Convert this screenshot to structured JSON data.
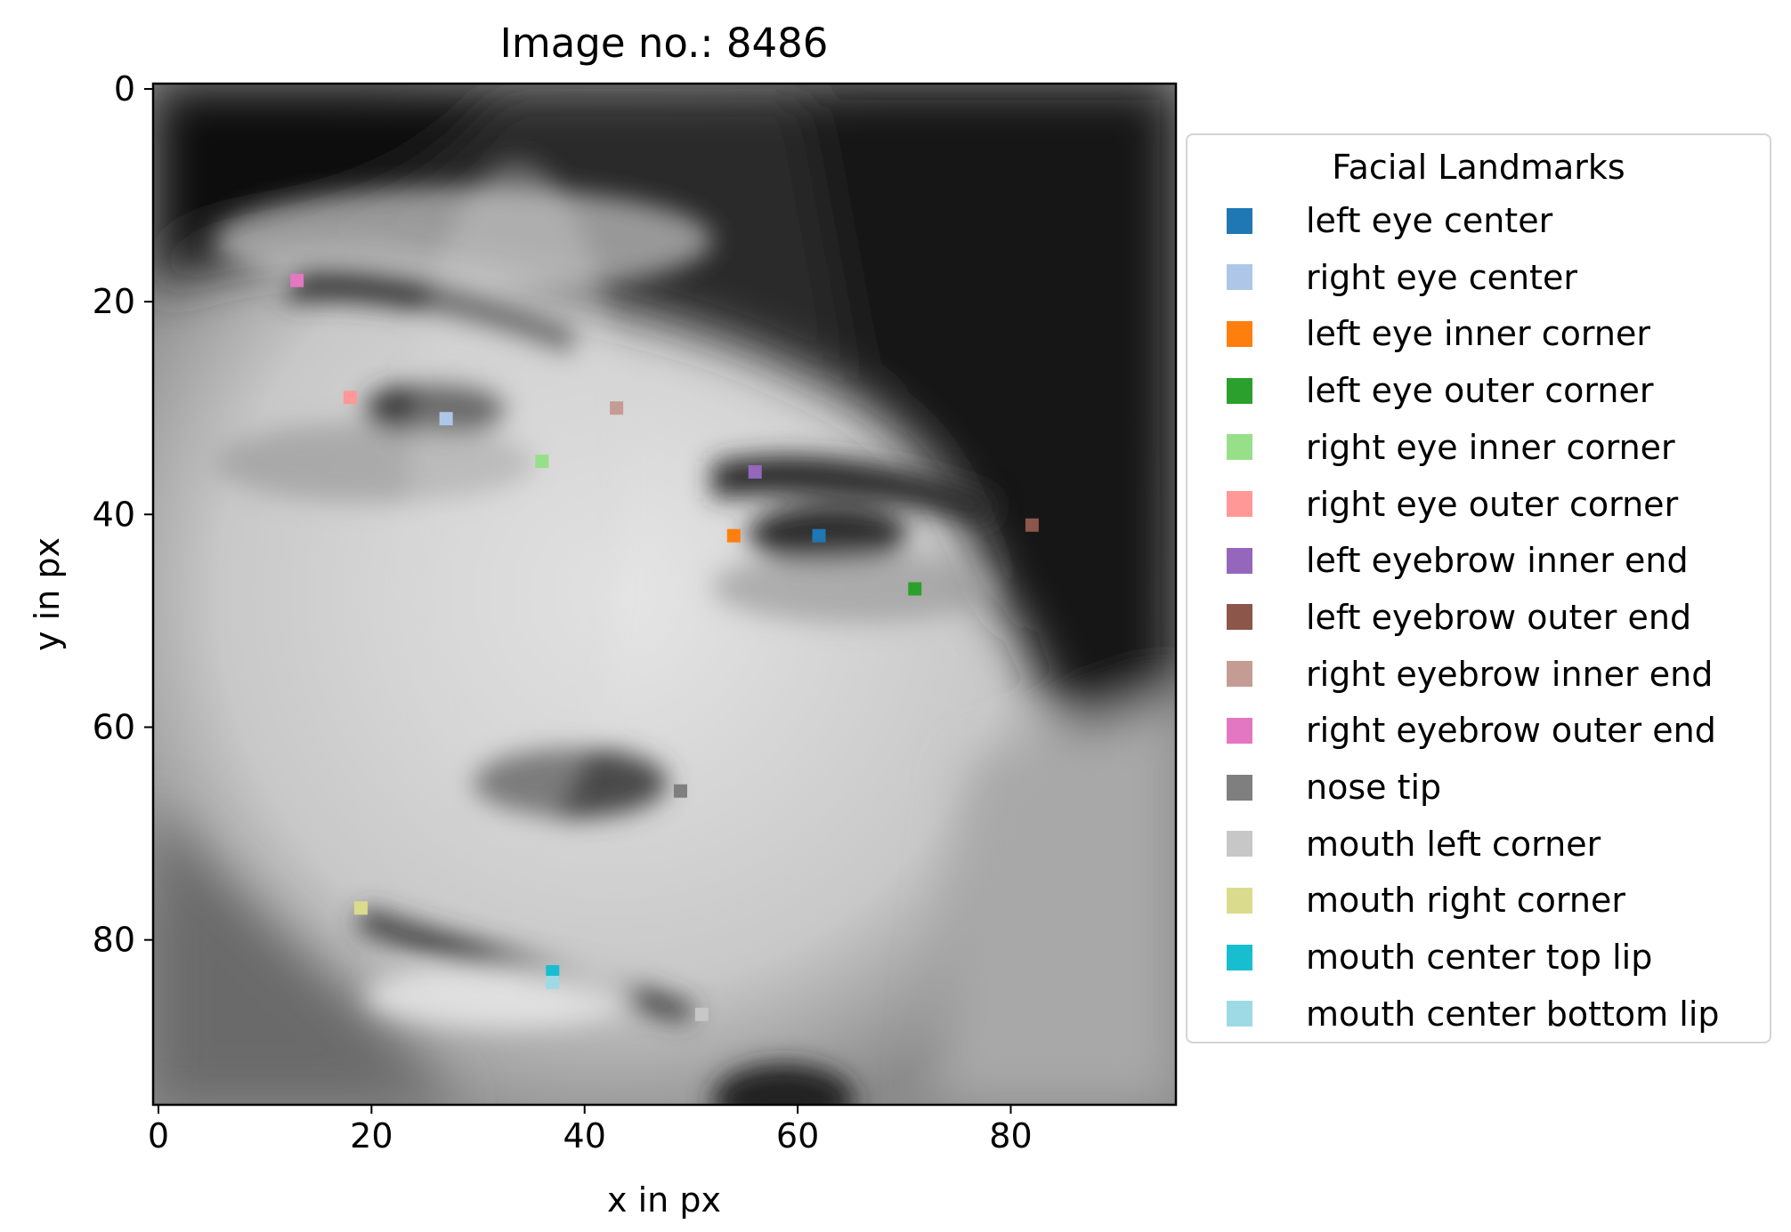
{
  "chart_data": {
    "type": "scatter",
    "title": "Image no.: 8486",
    "xlabel": "x in px",
    "ylabel": "y in px",
    "xlim": [
      -0.5,
      95.5
    ],
    "ylim": [
      95.5,
      -0.5
    ],
    "x_ticks": [
      0,
      20,
      40,
      60,
      80
    ],
    "y_ticks": [
      0,
      20,
      40,
      60,
      80
    ],
    "y_axis_inverted": true,
    "grid": false,
    "background": "96x96 grayscale face photograph",
    "legend": {
      "title": "Facial Landmarks",
      "placement": "outside-right"
    },
    "series": [
      {
        "name": "left eye center",
        "x": 62,
        "y": 42,
        "color": "#1f77b4"
      },
      {
        "name": "right eye center",
        "x": 27,
        "y": 31,
        "color": "#aec7e8"
      },
      {
        "name": "left eye inner corner",
        "x": 54,
        "y": 42,
        "color": "#ff7f0e"
      },
      {
        "name": "left eye outer corner",
        "x": 71,
        "y": 47,
        "color": "#2ca02c"
      },
      {
        "name": "right eye inner corner",
        "x": 36,
        "y": 35,
        "color": "#98df8a"
      },
      {
        "name": "right eye outer corner",
        "x": 18,
        "y": 29,
        "color": "#ff9896"
      },
      {
        "name": "left eyebrow inner end",
        "x": 56,
        "y": 36,
        "color": "#9467bd"
      },
      {
        "name": "left eyebrow outer end",
        "x": 82,
        "y": 41,
        "color": "#8c564b"
      },
      {
        "name": "right eyebrow inner end",
        "x": 43,
        "y": 30,
        "color": "#c49c94"
      },
      {
        "name": "right eyebrow outer end",
        "x": 13,
        "y": 18,
        "color": "#e377c2"
      },
      {
        "name": "nose tip",
        "x": 49,
        "y": 66,
        "color": "#7f7f7f"
      },
      {
        "name": "mouth left corner",
        "x": 51,
        "y": 87,
        "color": "#c7c7c7"
      },
      {
        "name": "mouth right corner",
        "x": 19,
        "y": 77,
        "color": "#dbdb8d"
      },
      {
        "name": "mouth center top lip",
        "x": 37,
        "y": 83,
        "color": "#17becf"
      },
      {
        "name": "mouth center bottom lip",
        "x": 37,
        "y": 84,
        "color": "#9edae5"
      }
    ]
  }
}
